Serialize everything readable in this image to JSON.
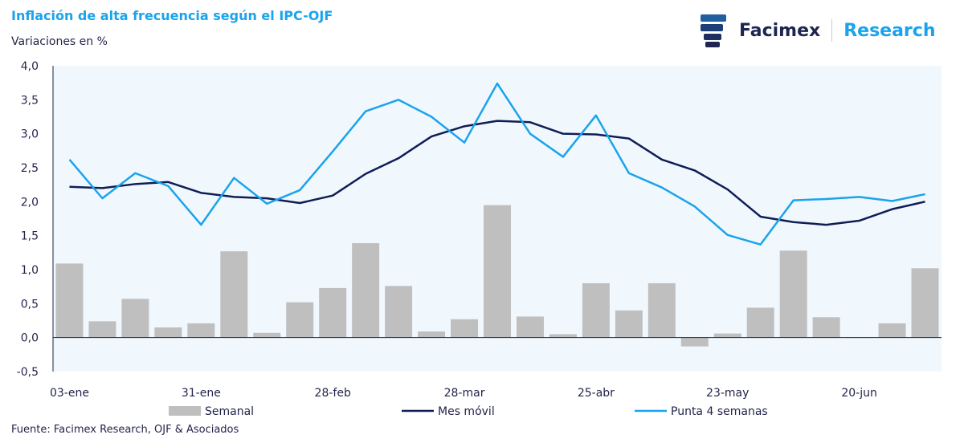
{
  "header": {
    "title": "Inflación de alta frecuencia según el IPC-OJF",
    "subtitle": "Variaciones en %",
    "brand": "Facimex",
    "division": "Research"
  },
  "source": "Fuente: Facimex Research, OJF & Asociados",
  "colors": {
    "bars": "#bfbfbf",
    "mes_movil": "#0f1d55",
    "punta": "#1aa3ec",
    "plot_bg": "#f1f8fd"
  },
  "chart_data": {
    "type": "bar+line",
    "title": "Inflación de alta frecuencia según el IPC-OJF",
    "ylabel": "Variaciones en %",
    "ylim": [
      -0.5,
      4.0
    ],
    "yticks": [
      "-0,5",
      "0,0",
      "0,5",
      "1,0",
      "1,5",
      "2,0",
      "2,5",
      "3,0",
      "3,5",
      "4,0"
    ],
    "xtick_labels": [
      {
        "index": 0,
        "label": "03-ene"
      },
      {
        "index": 4,
        "label": "31-ene"
      },
      {
        "index": 8,
        "label": "28-feb"
      },
      {
        "index": 12,
        "label": "28-mar"
      },
      {
        "index": 16,
        "label": "25-abr"
      },
      {
        "index": 20,
        "label": "23-may"
      },
      {
        "index": 24,
        "label": "20-jun"
      }
    ],
    "legend_position": "bottom",
    "series": [
      {
        "name": "Semanal",
        "type": "bar",
        "values": [
          1.09,
          0.24,
          0.57,
          0.15,
          0.21,
          1.27,
          0.07,
          0.52,
          0.73,
          1.39,
          0.76,
          0.09,
          0.27,
          1.95,
          0.31,
          0.05,
          0.8,
          0.4,
          0.8,
          -0.13,
          0.06,
          0.44,
          1.28,
          0.3,
          0.0,
          0.21,
          1.02
        ]
      },
      {
        "name": "Mes móvil",
        "type": "line",
        "values": [
          2.22,
          2.2,
          2.26,
          2.29,
          2.13,
          2.07,
          2.05,
          1.98,
          2.09,
          2.41,
          2.64,
          2.96,
          3.11,
          3.19,
          3.17,
          3.0,
          2.99,
          2.93,
          2.62,
          2.46,
          2.18,
          1.78,
          1.7,
          1.66,
          1.72,
          1.89,
          2.0
        ]
      },
      {
        "name": "Punta 4 semanas",
        "type": "line",
        "values": [
          2.62,
          2.05,
          2.42,
          2.23,
          1.66,
          2.35,
          1.97,
          2.17,
          2.74,
          3.33,
          3.5,
          3.25,
          2.87,
          3.74,
          3.0,
          2.66,
          3.27,
          2.42,
          2.21,
          1.93,
          1.51,
          1.37,
          2.02,
          2.04,
          2.07,
          2.01,
          2.11
        ]
      }
    ]
  }
}
